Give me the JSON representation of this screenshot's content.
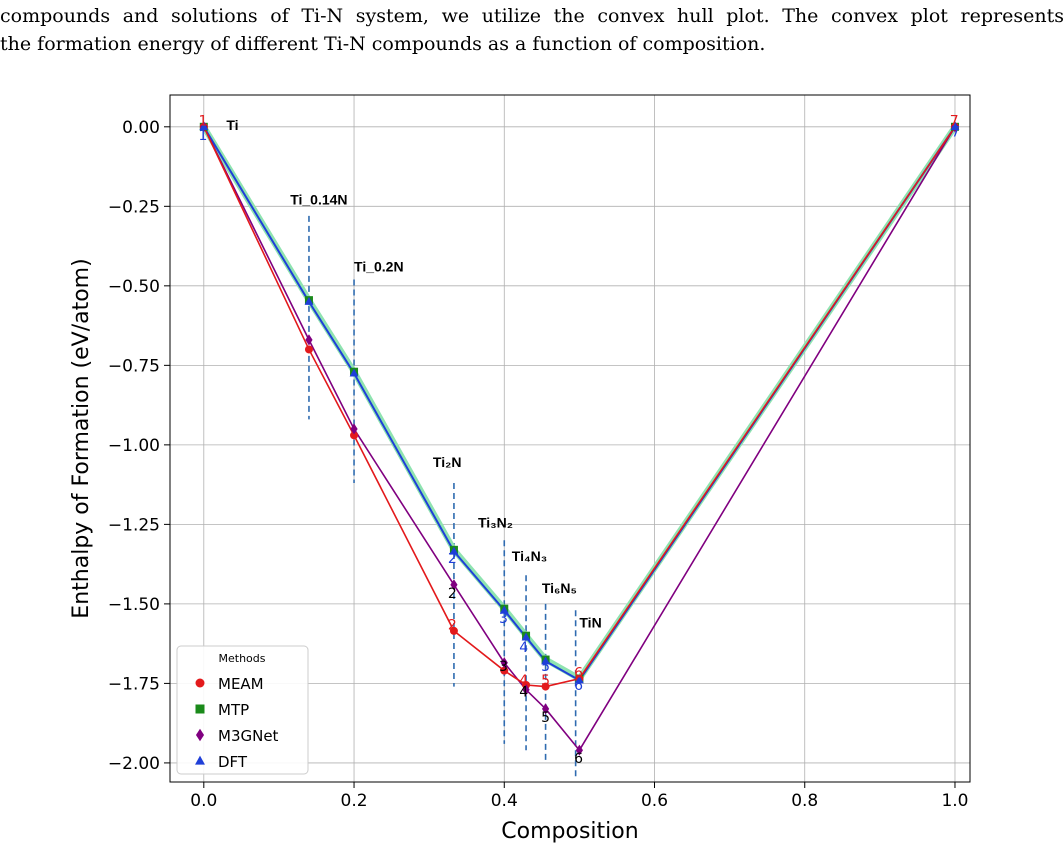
{
  "paragraph": {
    "line1": "compounds and solutions of Ti-N system, we utilize the convex hull plot. The convex plot represents",
    "line2": "the formation energy of different Ti-N compounds as a function of composition."
  },
  "chart_data": {
    "type": "line",
    "xlabel": "Composition",
    "ylabel": "Enthalpy of Formation (eV/atom)",
    "xlim": [
      -0.045,
      1.02
    ],
    "ylim": [
      -2.06,
      0.1
    ],
    "xticks": [
      0.0,
      0.2,
      0.4,
      0.6,
      0.8,
      1.0
    ],
    "xtick_labels": [
      "0.0",
      "0.2",
      "0.4",
      "0.6",
      "0.8",
      "1.0"
    ],
    "yticks": [
      0.0,
      -0.25,
      -0.5,
      -0.75,
      -1.0,
      -1.25,
      -1.5,
      -1.75,
      -2.0
    ],
    "ytick_labels": [
      "0.00",
      "−0.25",
      "−0.50",
      "−0.75",
      "−1.00",
      "−1.25",
      "−1.50",
      "−1.75",
      "−2.00"
    ],
    "grid": true,
    "legend": {
      "title": "Methods",
      "placement": "lower-left"
    },
    "series": [
      {
        "name": "MEAM",
        "color": "#e31a1c",
        "marker": "circle",
        "x": [
          0.0,
          0.14,
          0.2,
          0.333,
          0.4,
          0.429,
          0.455,
          0.5,
          1.0
        ],
        "y": [
          0.0,
          -0.7,
          -0.97,
          -1.585,
          -1.71,
          -1.755,
          -1.76,
          -1.735,
          0.0
        ]
      },
      {
        "name": "MTP",
        "color": "#1a8a1a",
        "marker": "square",
        "x": [
          0.0,
          0.14,
          0.2,
          0.333,
          0.4,
          0.429,
          0.455,
          0.5,
          1.0
        ],
        "y": [
          0.0,
          -0.545,
          -0.77,
          -1.33,
          -1.515,
          -1.6,
          -1.675,
          -1.735,
          0.0
        ]
      },
      {
        "name": "M3GNet",
        "color": "#800080",
        "marker": "diamond",
        "x": [
          0.0,
          0.14,
          0.2,
          0.333,
          0.4,
          0.429,
          0.455,
          0.5,
          1.0
        ],
        "y": [
          0.0,
          -0.67,
          -0.95,
          -1.44,
          -1.685,
          -1.77,
          -1.83,
          -1.96,
          0.0
        ]
      },
      {
        "name": "DFT",
        "color": "#1f3fd8",
        "marker": "triangle",
        "x": [
          0.0,
          0.14,
          0.2,
          0.333,
          0.4,
          0.429,
          0.455,
          0.5,
          1.0
        ],
        "y": [
          0.0,
          -0.55,
          -0.775,
          -1.335,
          -1.52,
          -1.605,
          -1.68,
          -1.74,
          0.0
        ]
      }
    ],
    "compound_labels": [
      {
        "text": "Ti",
        "x": 0.03,
        "y": -0.01
      },
      {
        "text": "Ti_0.14N",
        "x": 0.115,
        "y": -0.245
      },
      {
        "text": "Ti_0.2N",
        "x": 0.2,
        "y": -0.455
      },
      {
        "text": "Ti₂N",
        "x": 0.305,
        "y": -1.07
      },
      {
        "text": "Ti₃N₂",
        "x": 0.365,
        "y": -1.26
      },
      {
        "text": "Ti₄N₃",
        "x": 0.41,
        "y": -1.365
      },
      {
        "text": "Ti₆N₅",
        "x": 0.45,
        "y": -1.465
      },
      {
        "text": "TiN",
        "x": 0.5,
        "y": -1.575
      }
    ],
    "vlines": [
      {
        "x": 0.14,
        "y1": -0.28,
        "y2": -0.92
      },
      {
        "x": 0.2,
        "y1": -0.48,
        "y2": -1.12
      },
      {
        "x": 0.333,
        "y1": -1.12,
        "y2": -1.76
      },
      {
        "x": 0.4,
        "y1": -1.3,
        "y2": -1.94
      },
      {
        "x": 0.429,
        "y1": -1.41,
        "y2": -1.96
      },
      {
        "x": 0.455,
        "y1": -1.5,
        "y2": -2.0
      },
      {
        "x": 0.495,
        "y1": -1.52,
        "y2": -2.05
      }
    ],
    "point_numbers": [
      {
        "text": "1",
        "color": "#e31a1c",
        "x": -0.007,
        "y": 0.02
      },
      {
        "text": "1",
        "color": "#1f3fd8",
        "x": -0.007,
        "y": -0.025
      },
      {
        "text": "7",
        "color": "#e31a1c",
        "x": 0.993,
        "y": 0.02
      },
      {
        "text": "7",
        "color": "#1f3fd8",
        "x": 0.995,
        "y": -0.015
      },
      {
        "text": "2",
        "color": "#1f3fd8",
        "x": 0.325,
        "y": -1.355
      },
      {
        "text": "2",
        "color": "#000000",
        "x": 0.325,
        "y": -1.465
      },
      {
        "text": "2",
        "color": "#e31a1c",
        "x": 0.325,
        "y": -1.565
      },
      {
        "text": "3",
        "color": "#1f3fd8",
        "x": 0.393,
        "y": -1.545
      },
      {
        "text": "3",
        "color": "#000000",
        "x": 0.393,
        "y": -1.695
      },
      {
        "text": "4",
        "color": "#1f3fd8",
        "x": 0.42,
        "y": -1.635
      },
      {
        "text": "4",
        "color": "#e31a1c",
        "x": 0.42,
        "y": -1.74
      },
      {
        "text": "4",
        "color": "#000000",
        "x": 0.42,
        "y": -1.775
      },
      {
        "text": "5",
        "color": "#1f3fd8",
        "x": 0.449,
        "y": -1.695
      },
      {
        "text": "5",
        "color": "#e31a1c",
        "x": 0.449,
        "y": -1.74
      },
      {
        "text": "5",
        "color": "#000000",
        "x": 0.449,
        "y": -1.855
      },
      {
        "text": "6",
        "color": "#e31a1c",
        "x": 0.493,
        "y": -1.715
      },
      {
        "text": "6",
        "color": "#1f3fd8",
        "x": 0.493,
        "y": -1.755
      },
      {
        "text": "6",
        "color": "#000000",
        "x": 0.493,
        "y": -1.985
      }
    ]
  }
}
